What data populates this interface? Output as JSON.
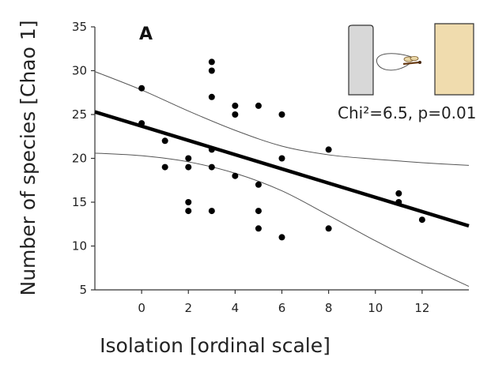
{
  "chart_data": {
    "type": "scatter",
    "panel_label": "A",
    "xlabel": "Isolation [ordinal scale]",
    "ylabel": "Number of species [Chao 1]",
    "xlim": [
      -2,
      14
    ],
    "ylim": [
      5,
      35
    ],
    "xticks": [
      "0",
      "2",
      "4",
      "6",
      "8",
      "10",
      "12"
    ],
    "yticks": [
      "5",
      "10",
      "15",
      "20",
      "25",
      "30",
      "35"
    ],
    "points": [
      {
        "x": 0,
        "y": 28
      },
      {
        "x": 0,
        "y": 24
      },
      {
        "x": 1,
        "y": 22
      },
      {
        "x": 1,
        "y": 19
      },
      {
        "x": 2,
        "y": 20
      },
      {
        "x": 2,
        "y": 19
      },
      {
        "x": 2,
        "y": 15
      },
      {
        "x": 2,
        "y": 14
      },
      {
        "x": 3,
        "y": 31
      },
      {
        "x": 3,
        "y": 30
      },
      {
        "x": 3,
        "y": 27
      },
      {
        "x": 3,
        "y": 21
      },
      {
        "x": 3,
        "y": 19
      },
      {
        "x": 3,
        "y": 14
      },
      {
        "x": 4,
        "y": 26
      },
      {
        "x": 4,
        "y": 25
      },
      {
        "x": 4,
        "y": 18
      },
      {
        "x": 5,
        "y": 26
      },
      {
        "x": 5,
        "y": 17
      },
      {
        "x": 5,
        "y": 14
      },
      {
        "x": 5,
        "y": 12
      },
      {
        "x": 6,
        "y": 25
      },
      {
        "x": 6,
        "y": 20
      },
      {
        "x": 6,
        "y": 11
      },
      {
        "x": 8,
        "y": 21
      },
      {
        "x": 8,
        "y": 12
      },
      {
        "x": 11,
        "y": 16
      },
      {
        "x": 11,
        "y": 15
      },
      {
        "x": 12,
        "y": 13
      }
    ],
    "regression": {
      "x": [
        -2,
        14
      ],
      "y": [
        25.3,
        12.3
      ]
    },
    "ci_upper": {
      "x": [
        -2,
        0,
        2,
        4,
        6,
        8,
        10,
        12,
        14
      ],
      "y": [
        29.9,
        27.8,
        25.4,
        23.2,
        21.4,
        20.4,
        19.9,
        19.5,
        19.2
      ]
    },
    "ci_lower": {
      "x": [
        -2,
        0,
        2,
        4,
        6,
        8,
        10,
        12,
        14
      ],
      "y": [
        20.6,
        20.3,
        19.6,
        18.3,
        16.3,
        13.5,
        10.6,
        7.9,
        5.4
      ]
    },
    "annotation": "Chi²=6.5, p=0.01",
    "colors": {
      "points": "#000000",
      "regression": "#000000",
      "ci": "#555555",
      "pillar_left": "#d8d8d8",
      "pillar_right": "#f0dcae"
    },
    "grid": false
  }
}
